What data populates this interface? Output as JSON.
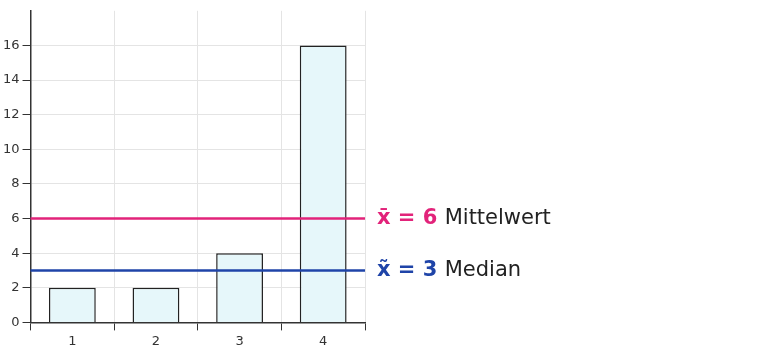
{
  "chart_data": {
    "type": "bar",
    "categories": [
      "1",
      "2",
      "3",
      "4"
    ],
    "values": [
      2,
      2,
      4,
      16
    ],
    "color": "#e6f7fa",
    "ylim": [
      0,
      18
    ],
    "yticks": [
      0,
      2,
      4,
      6,
      8,
      10,
      12,
      14,
      16
    ],
    "grid": true,
    "lines": [
      {
        "value": 6,
        "text": "x̄ = 6",
        "label": "Mittelwert",
        "color": "#e2237a"
      },
      {
        "value": 3,
        "text": "x̃ = 3",
        "label": "Median",
        "color": "#1f44a8"
      }
    ]
  }
}
